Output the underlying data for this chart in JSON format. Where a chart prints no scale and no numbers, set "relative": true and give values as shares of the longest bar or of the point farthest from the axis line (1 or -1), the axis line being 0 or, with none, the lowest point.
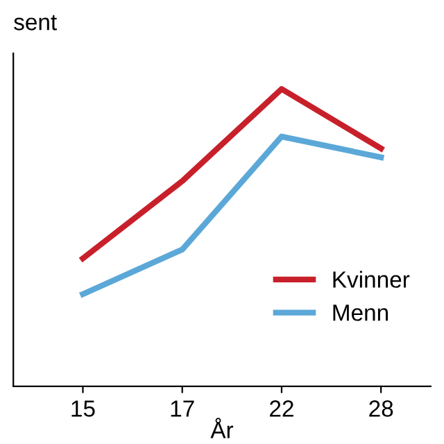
{
  "chart_data": {
    "type": "line",
    "ylabel": "sent",
    "xlabel": "År",
    "categories": [
      "15",
      "17",
      "22",
      "28"
    ],
    "relative": true,
    "legend": "bottom right",
    "grid": false,
    "series": [
      {
        "name": "Kvinner",
        "color": "#c8202a",
        "values": [
          0.43,
          0.69,
          1,
          0.8
        ]
      },
      {
        "name": "Menn",
        "color": "#5ba8d8",
        "values": [
          0.31,
          0.46,
          0.84,
          0.77
        ]
      }
    ]
  }
}
